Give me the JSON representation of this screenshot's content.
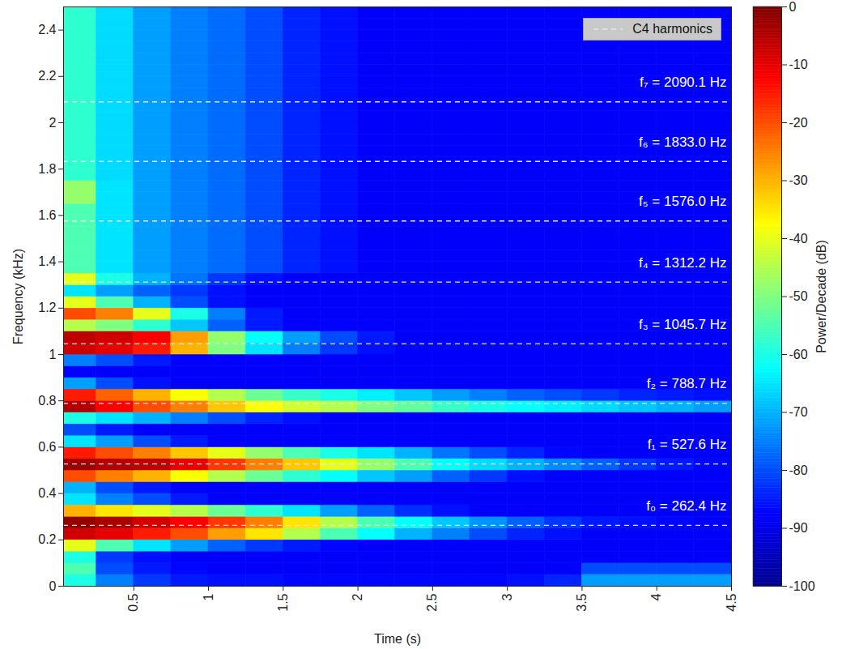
{
  "chart_data": {
    "type": "heatmap",
    "x_label": "Time (s)",
    "y_label": "Frequency (kHz)",
    "xlim": [
      0.03,
      4.5
    ],
    "xticks": [
      0.5,
      1,
      1.5,
      2,
      2.5,
      3,
      3.5,
      4,
      4.5
    ],
    "ylim": [
      0,
      2.5
    ],
    "yticks": [
      0,
      0.2,
      0.4,
      0.6,
      0.8,
      1,
      1.2,
      1.4,
      1.6,
      1.8,
      2,
      2.2,
      2.4
    ],
    "time_bins": [
      0,
      0.25,
      0.5,
      0.75,
      1,
      1.25,
      1.5,
      1.75,
      2,
      2.25,
      2.5,
      2.75,
      3,
      3.25,
      3.5,
      3.75,
      4,
      4.25,
      4.5
    ],
    "freq_bins": [
      0,
      0.05,
      0.1,
      0.15,
      0.2,
      0.25,
      0.3,
      0.35,
      0.4,
      0.45,
      0.5,
      0.55,
      0.6,
      0.65,
      0.7,
      0.75,
      0.8,
      0.85,
      0.9,
      0.95,
      1,
      1.05,
      1.1,
      1.15,
      1.2,
      1.25,
      1.3,
      1.35,
      1.4,
      1.45,
      1.5,
      1.55,
      1.6,
      1.65,
      1.7,
      1.75,
      1.8,
      1.85,
      1.9,
      1.95,
      2,
      2.05,
      2.1,
      2.15,
      2.2,
      2.25,
      2.3,
      2.35,
      2.4,
      2.45,
      2.5
    ],
    "cells": [
      [
        -60,
        -75,
        -82,
        -85,
        -86,
        -86,
        -87,
        -87,
        -87,
        -87,
        -87,
        -87,
        -86,
        -84,
        -72,
        -72,
        -72,
        -72
      ],
      [
        -55,
        -80,
        -85,
        -87,
        -88,
        -88,
        -88,
        -88,
        -88,
        -88,
        -88,
        -88,
        -88,
        -88,
        -80,
        -80,
        -80,
        -80
      ],
      [
        -60,
        -82,
        -86,
        -88,
        -88,
        -88,
        -88,
        -88,
        -88,
        -88,
        -88,
        -88,
        -88,
        -88,
        -88,
        -88,
        -88,
        -88
      ],
      [
        -40,
        -55,
        -65,
        -72,
        -78,
        -82,
        -85,
        -87,
        -88,
        -88,
        -88,
        -88,
        -88,
        -88,
        -88,
        -88,
        -88,
        -88
      ],
      [
        -8,
        -10,
        -15,
        -20,
        -28,
        -35,
        -45,
        -55,
        -62,
        -70,
        -75,
        -80,
        -84,
        -86,
        -88,
        -88,
        -88,
        -88
      ],
      [
        -2,
        -4,
        -8,
        -12,
        -18,
        -25,
        -35,
        -45,
        -55,
        -62,
        -68,
        -73,
        -78,
        -82,
        -85,
        -86,
        -87,
        -88
      ],
      [
        -30,
        -35,
        -40,
        -45,
        -52,
        -58,
        -65,
        -72,
        -78,
        -83,
        -86,
        -88,
        -88,
        -88,
        -88,
        -88,
        -88,
        -88
      ],
      [
        -65,
        -75,
        -80,
        -85,
        -88,
        -88,
        -88,
        -88,
        -88,
        -88,
        -88,
        -88,
        -88,
        -88,
        -88,
        -88,
        -88,
        -88
      ],
      [
        -70,
        -80,
        -85,
        -88,
        -88,
        -88,
        -88,
        -88,
        -88,
        -88,
        -88,
        -88,
        -88,
        -88,
        -88,
        -88,
        -88,
        -88
      ],
      [
        -20,
        -25,
        -30,
        -38,
        -45,
        -52,
        -58,
        -62,
        -68,
        -72,
        -78,
        -82,
        -86,
        -88,
        -88,
        -88,
        -88,
        -88
      ],
      [
        -3,
        -5,
        -6,
        -10,
        -18,
        -25,
        -32,
        -40,
        -48,
        -55,
        -62,
        -66,
        -70,
        -74,
        -78,
        -82,
        -85,
        -87
      ],
      [
        -15,
        -20,
        -25,
        -32,
        -40,
        -48,
        -55,
        -60,
        -65,
        -70,
        -76,
        -80,
        -84,
        -87,
        -88,
        -88,
        -88,
        -88
      ],
      [
        -65,
        -72,
        -80,
        -85,
        -88,
        -88,
        -88,
        -88,
        -88,
        -88,
        -88,
        -88,
        -88,
        -88,
        -88,
        -88,
        -88,
        -88
      ],
      [
        -80,
        -85,
        -88,
        -88,
        -88,
        -88,
        -88,
        -88,
        -88,
        -88,
        -88,
        -88,
        -88,
        -88,
        -88,
        -88,
        -88,
        -88
      ],
      [
        -60,
        -65,
        -70,
        -75,
        -80,
        -84,
        -86,
        -88,
        -88,
        -88,
        -88,
        -88,
        -88,
        -88,
        -88,
        -88,
        -88,
        -88
      ],
      [
        -5,
        -12,
        -20,
        -25,
        -32,
        -38,
        -42,
        -45,
        -50,
        -53,
        -57,
        -60,
        -62,
        -64,
        -66,
        -68,
        -70,
        -72
      ],
      [
        -15,
        -22,
        -30,
        -38,
        -45,
        -52,
        -57,
        -60,
        -64,
        -68,
        -72,
        -75,
        -78,
        -80,
        -82,
        -84,
        -85,
        -86
      ],
      [
        -72,
        -80,
        -86,
        -88,
        -88,
        -88,
        -88,
        -88,
        -88,
        -88,
        -88,
        -88,
        -88,
        -88,
        -88,
        -88,
        -88,
        -88
      ],
      [
        -88,
        -88,
        -88,
        -88,
        -88,
        -88,
        -88,
        -88,
        -88,
        -88,
        -88,
        -88,
        -88,
        -88,
        -88,
        -88,
        -88,
        -88
      ],
      [
        -75,
        -80,
        -85,
        -88,
        -88,
        -88,
        -88,
        -88,
        -88,
        -88,
        -88,
        -88,
        -88,
        -88,
        -88,
        -88,
        -88,
        -88
      ],
      [
        -8,
        -10,
        -15,
        -30,
        -50,
        -65,
        -75,
        -82,
        -86,
        -88,
        -88,
        -88,
        -88,
        -88,
        -88,
        -88,
        -88,
        -88
      ],
      [
        -6,
        -8,
        -12,
        -28,
        -48,
        -62,
        -72,
        -80,
        -85,
        -88,
        -88,
        -88,
        -88,
        -88,
        -88,
        -88,
        -88,
        -88
      ],
      [
        -45,
        -50,
        -58,
        -68,
        -78,
        -85,
        -88,
        -88,
        -88,
        -88,
        -88,
        -88,
        -88,
        -88,
        -88,
        -88,
        -88,
        -88
      ],
      [
        -20,
        -25,
        -40,
        -60,
        -75,
        -85,
        -88,
        -88,
        -88,
        -88,
        -88,
        -88,
        -88,
        -88,
        -88,
        -88,
        -88,
        -88
      ],
      [
        -40,
        -55,
        -70,
        -80,
        -86,
        -88,
        -88,
        -88,
        -88,
        -88,
        -88,
        -88,
        -88,
        -88,
        -88,
        -88,
        -88,
        -88
      ],
      [
        -65,
        -72,
        -78,
        -82,
        -86,
        -88,
        -88,
        -88,
        -88,
        -88,
        -88,
        -88,
        -88,
        -88,
        -88,
        -88,
        -88,
        -88
      ],
      [
        -40,
        -60,
        -70,
        -76,
        -82,
        -86,
        -88,
        -88,
        -88,
        -88,
        -88,
        -88,
        -88,
        -88,
        -88,
        -88,
        -88,
        -88
      ],
      [
        -55,
        -65,
        -72,
        -75,
        -77,
        -80,
        -84,
        -86,
        -88,
        -88,
        -88,
        -88,
        -88,
        -88,
        -88,
        -88,
        -88,
        -88
      ],
      [
        -55,
        -65,
        -72,
        -75,
        -77,
        -80,
        -84,
        -86,
        -88,
        -88,
        -88,
        -88,
        -88,
        -88,
        -88,
        -88,
        -88,
        -88
      ],
      [
        -55,
        -65,
        -72,
        -75,
        -77,
        -80,
        -84,
        -86,
        -88,
        -88,
        -88,
        -88,
        -88,
        -88,
        -88,
        -88,
        -88,
        -88
      ],
      [
        -55,
        -65,
        -72,
        -75,
        -77,
        -80,
        -84,
        -86,
        -88,
        -88,
        -88,
        -88,
        -88,
        -88,
        -88,
        -88,
        -88,
        -88
      ],
      [
        -55,
        -65,
        -72,
        -75,
        -77,
        -80,
        -84,
        -86,
        -88,
        -88,
        -88,
        -88,
        -88,
        -88,
        -88,
        -88,
        -88,
        -88
      ],
      [
        -55,
        -65,
        -72,
        -75,
        -77,
        -80,
        -84,
        -86,
        -88,
        -88,
        -88,
        -88,
        -88,
        -88,
        -88,
        -88,
        -88,
        -88
      ],
      [
        -48,
        -65,
        -72,
        -75,
        -77,
        -80,
        -84,
        -86,
        -88,
        -88,
        -88,
        -88,
        -88,
        -88,
        -88,
        -88,
        -88,
        -88
      ],
      [
        -48,
        -65,
        -72,
        -75,
        -77,
        -80,
        -84,
        -86,
        -88,
        -88,
        -88,
        -88,
        -88,
        -88,
        -88,
        -88,
        -88,
        -88
      ],
      [
        -58,
        -66,
        -72,
        -75,
        -77,
        -80,
        -84,
        -86,
        -88,
        -88,
        -88,
        -88,
        -88,
        -88,
        -88,
        -88,
        -88,
        -88
      ],
      [
        -58,
        -66,
        -72,
        -75,
        -77,
        -80,
        -84,
        -86,
        -88,
        -88,
        -88,
        -88,
        -88,
        -88,
        -88,
        -88,
        -88,
        -88
      ],
      [
        -58,
        -66,
        -72,
        -75,
        -77,
        -80,
        -84,
        -86,
        -88,
        -88,
        -88,
        -88,
        -88,
        -88,
        -88,
        -88,
        -88,
        -88
      ],
      [
        -58,
        -66,
        -72,
        -75,
        -77,
        -80,
        -84,
        -86,
        -88,
        -88,
        -88,
        -88,
        -88,
        -88,
        -88,
        -88,
        -88,
        -88
      ],
      [
        -58,
        -66,
        -72,
        -75,
        -77,
        -80,
        -84,
        -86,
        -88,
        -88,
        -88,
        -88,
        -88,
        -88,
        -88,
        -88,
        -88,
        -88
      ],
      [
        -58,
        -66,
        -72,
        -75,
        -77,
        -80,
        -84,
        -86,
        -88,
        -88,
        -88,
        -88,
        -88,
        -88,
        -88,
        -88,
        -88,
        -88
      ],
      [
        -58,
        -66,
        -72,
        -75,
        -77,
        -80,
        -84,
        -86,
        -88,
        -88,
        -88,
        -88,
        -88,
        -88,
        -88,
        -88,
        -88,
        -88
      ],
      [
        -58,
        -66,
        -72,
        -75,
        -77,
        -80,
        -84,
        -86,
        -88,
        -88,
        -88,
        -88,
        -88,
        -88,
        -88,
        -88,
        -88,
        -88
      ],
      [
        -58,
        -66,
        -72,
        -75,
        -77,
        -80,
        -84,
        -86,
        -88,
        -88,
        -88,
        -88,
        -88,
        -88,
        -88,
        -88,
        -88,
        -88
      ],
      [
        -58,
        -66,
        -72,
        -75,
        -77,
        -80,
        -84,
        -86,
        -88,
        -88,
        -88,
        -88,
        -88,
        -88,
        -88,
        -88,
        -88,
        -88
      ],
      [
        -58,
        -66,
        -72,
        -75,
        -77,
        -80,
        -84,
        -86,
        -88,
        -88,
        -88,
        -88,
        -88,
        -88,
        -88,
        -88,
        -88,
        -88
      ],
      [
        -58,
        -66,
        -72,
        -75,
        -77,
        -80,
        -84,
        -86,
        -88,
        -88,
        -88,
        -88,
        -88,
        -88,
        -88,
        -88,
        -88,
        -88
      ],
      [
        -58,
        -66,
        -72,
        -75,
        -77,
        -80,
        -84,
        -86,
        -88,
        -88,
        -88,
        -88,
        -88,
        -88,
        -88,
        -88,
        -88,
        -88
      ],
      [
        -58,
        -66,
        -72,
        -75,
        -77,
        -80,
        -84,
        -86,
        -88,
        -88,
        -88,
        -88,
        -88,
        -88,
        -88,
        -88,
        -88,
        -88
      ],
      [
        -58,
        -66,
        -72,
        -75,
        -77,
        -80,
        -84,
        -86,
        -88,
        -88,
        -88,
        -88,
        -88,
        -88,
        -88,
        -88,
        -88,
        -88
      ]
    ],
    "colorbar": {
      "label": "Power/Decade (dB)",
      "range": [
        -100,
        0
      ],
      "ticks": [
        -100,
        -90,
        -80,
        -70,
        -60,
        -50,
        -40,
        -30,
        -20,
        -10,
        0
      ]
    },
    "series": [
      {
        "name": "C4 harmonics",
        "type": "line",
        "color": "#e8e8e8",
        "line_style": "dashed",
        "values": [
          0.2624,
          0.5276,
          0.7887,
          1.0457,
          1.3122,
          1.576,
          1.833,
          2.0901
        ],
        "value_labels": [
          "f₀ = 262.4 Hz",
          "f₁ = 527.6 Hz",
          "f₂ = 788.7 Hz",
          "f₃ = 1045.7 Hz",
          "f₄ = 1312.2 Hz",
          "f₅ = 1576.0 Hz",
          "f₆ = 1833.0 Hz",
          "f₇ = 2090.1 Hz"
        ]
      }
    ],
    "legend": "top-right"
  }
}
